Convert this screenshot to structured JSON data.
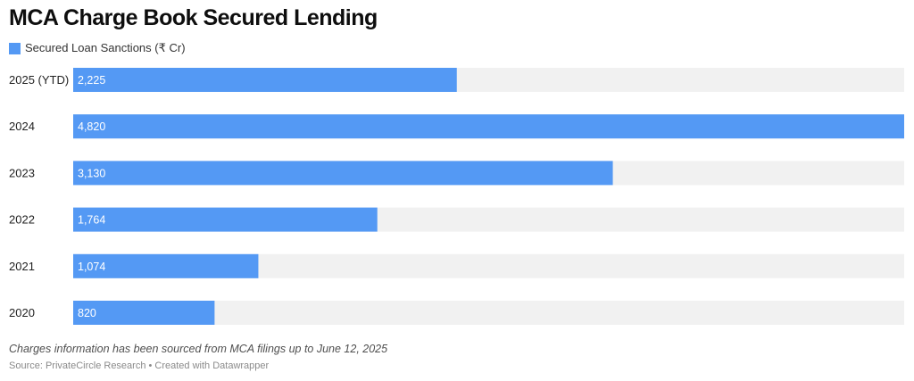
{
  "title": "MCA Charge Book Secured Lending",
  "legend": {
    "label": "Secured Loan Sanctions (₹ Cr)",
    "color": "#5499f4"
  },
  "chart_data": {
    "type": "bar",
    "orientation": "horizontal",
    "title": "MCA Charge Book Secured Lending",
    "categories": [
      "2025 (YTD)",
      "2024",
      "2023",
      "2022",
      "2021",
      "2020"
    ],
    "series": [
      {
        "name": "Secured Loan Sanctions (₹ Cr)",
        "values": [
          2225,
          4820,
          3130,
          1764,
          1074,
          820
        ],
        "labels": [
          "2,225",
          "4,820",
          "3,130",
          "1,764",
          "1,074",
          "820"
        ]
      }
    ],
    "xlim": [
      0,
      4820
    ],
    "bar_color": "#5499f4",
    "track_color": "#f1f1f1",
    "label_color": "#ffffff",
    "grid": false,
    "legend_position": "top-left"
  },
  "footnote": "Charges information has been sourced from MCA filings up to June 12, 2025",
  "source": "Source: PrivateCircle Research • Created with Datawrapper"
}
